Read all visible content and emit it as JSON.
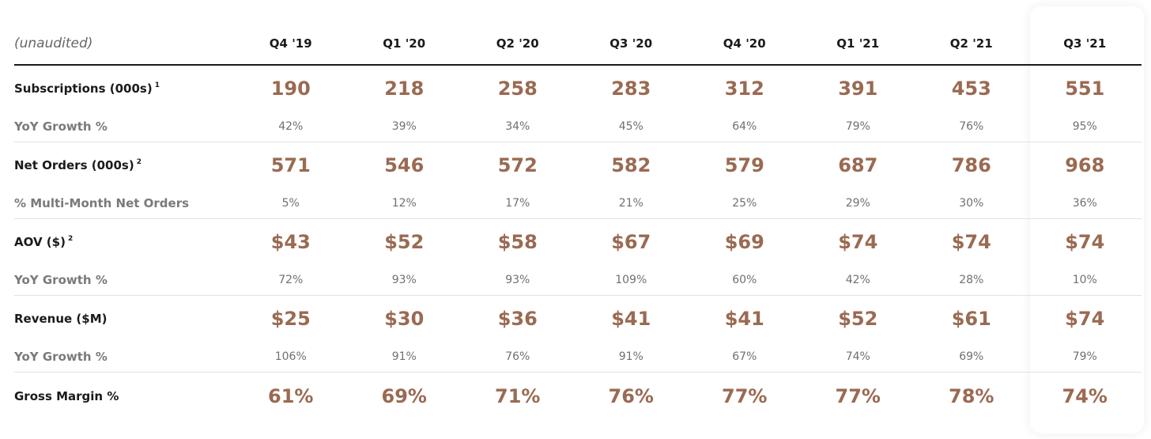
{
  "header": {
    "label": "(unaudited)",
    "quarters": [
      "Q4 '19",
      "Q1 '20",
      "Q2 '20",
      "Q3 '20",
      "Q4 '20",
      "Q1 '21",
      "Q2 '21",
      "Q3 '21"
    ]
  },
  "colors": {
    "value_accent": "#9a6a52",
    "sub_text": "#707070",
    "divider": "#e2e2e2"
  },
  "rows": [
    {
      "label": "Subscriptions (000s)",
      "footnote": "1",
      "values": [
        "190",
        "218",
        "258",
        "283",
        "312",
        "391",
        "453",
        "551"
      ],
      "sub_label": "YoY Growth %",
      "sub_values": [
        "42%",
        "39%",
        "34%",
        "45%",
        "64%",
        "79%",
        "76%",
        "95%"
      ]
    },
    {
      "label": "Net Orders (000s)",
      "footnote": "2",
      "values": [
        "571",
        "546",
        "572",
        "582",
        "579",
        "687",
        "786",
        "968"
      ],
      "sub_label": "% Multi-Month Net Orders",
      "sub_values": [
        "5%",
        "12%",
        "17%",
        "21%",
        "25%",
        "29%",
        "30%",
        "36%"
      ]
    },
    {
      "label": "AOV ($)",
      "footnote": "2",
      "values": [
        "$43",
        "$52",
        "$58",
        "$67",
        "$69",
        "$74",
        "$74",
        "$74"
      ],
      "sub_label": "YoY Growth %",
      "sub_values": [
        "72%",
        "93%",
        "93%",
        "109%",
        "60%",
        "42%",
        "28%",
        "10%"
      ]
    },
    {
      "label": "Revenue ($M)",
      "footnote": "",
      "values": [
        "$25",
        "$30",
        "$36",
        "$41",
        "$41",
        "$52",
        "$61",
        "$74"
      ],
      "sub_label": "YoY Growth %",
      "sub_values": [
        "106%",
        "91%",
        "76%",
        "91%",
        "67%",
        "74%",
        "69%",
        "79%"
      ]
    },
    {
      "label": "Gross Margin %",
      "footnote": "",
      "values": [
        "61%",
        "69%",
        "71%",
        "76%",
        "77%",
        "77%",
        "78%",
        "74%"
      ]
    }
  ]
}
